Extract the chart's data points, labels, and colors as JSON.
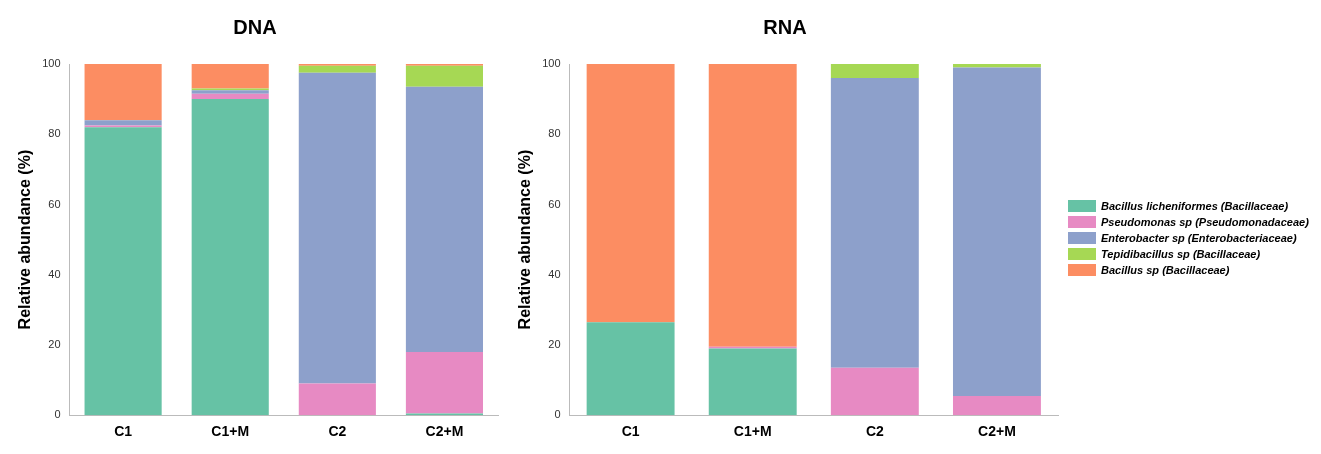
{
  "chart_data": [
    {
      "type": "bar",
      "title": "DNA",
      "ylabel": "Relative abundance (%)",
      "categories": [
        "C1",
        "C1+M",
        "C2",
        "C2+M"
      ],
      "stacked": true,
      "ylim": [
        0,
        100
      ],
      "yticks": [
        0,
        20,
        40,
        60,
        80,
        100
      ],
      "grid": false,
      "legend": false,
      "series": [
        {
          "color": "#66c2a5",
          "values": [
            82,
            90,
            0,
            0.5
          ]
        },
        {
          "color": "#e78ac3",
          "values": [
            0.5,
            1.5,
            9,
            17.5
          ]
        },
        {
          "color": "#8da0cb",
          "values": [
            1.5,
            1,
            88.5,
            75.5
          ]
        },
        {
          "color": "#a6d854",
          "values": [
            0,
            0.5,
            2,
            6
          ]
        },
        {
          "color": "#fc8d62",
          "values": [
            16,
            7,
            0.5,
            0.5
          ]
        }
      ]
    },
    {
      "type": "bar",
      "title": "RNA",
      "ylabel": "Relative abundance (%)",
      "categories": [
        "C1",
        "C1+M",
        "C2",
        "C2+M"
      ],
      "stacked": true,
      "ylim": [
        0,
        100
      ],
      "yticks": [
        0,
        20,
        40,
        60,
        80,
        100
      ],
      "grid": false,
      "legend": "right",
      "series": [
        {
          "name": "Bacillus licheniformes (Bacillaceae)",
          "color": "#66c2a5",
          "values": [
            26.5,
            19,
            0,
            0
          ]
        },
        {
          "name": "Pseudomonas sp (Pseudomonadaceae)",
          "color": "#e78ac3",
          "values": [
            0,
            0.5,
            13.5,
            5.5
          ]
        },
        {
          "name": "Enterobacter sp (Enterobacteriaceae)",
          "color": "#8da0cb",
          "values": [
            0,
            0,
            82.5,
            93.5
          ]
        },
        {
          "name": "Tepidibacillus sp  (Bacillaceae)",
          "color": "#a6d854",
          "values": [
            0,
            0,
            4,
            1
          ]
        },
        {
          "name": "Bacillus sp (Bacillaceae)",
          "color": "#fc8d62",
          "values": [
            73.5,
            80.5,
            0,
            0
          ]
        }
      ]
    }
  ]
}
